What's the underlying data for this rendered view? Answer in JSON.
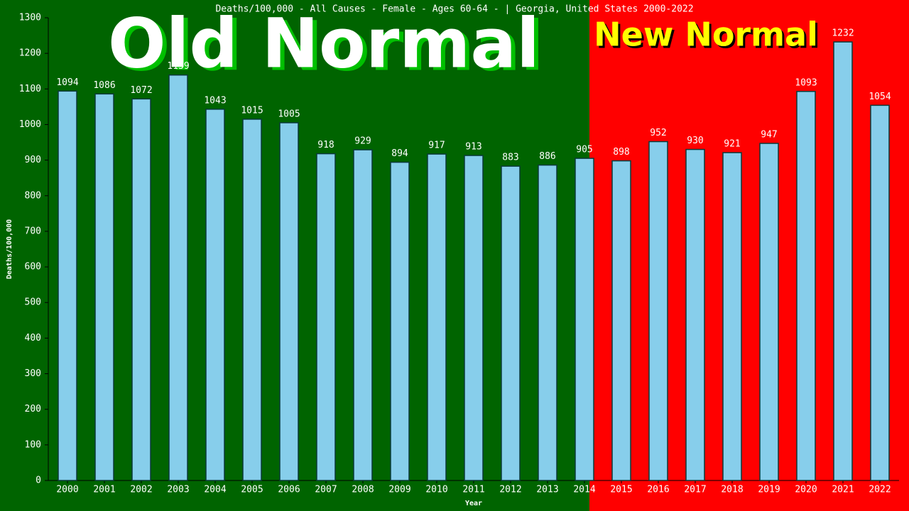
{
  "chart_data": {
    "type": "bar",
    "title": "Deaths/100,000 - All Causes - Female - Ages 60-64 -  | Georgia, United States 2000-2022",
    "x_label": "Year",
    "y_label": "Deaths/100,000",
    "annotations": [
      "Old Normal",
      "New Normal"
    ],
    "categories": [
      "2000",
      "2001",
      "2002",
      "2003",
      "2004",
      "2005",
      "2006",
      "2007",
      "2008",
      "2009",
      "2010",
      "2011",
      "2012",
      "2013",
      "2014",
      "2015",
      "2016",
      "2017",
      "2018",
      "2019",
      "2020",
      "2021",
      "2022"
    ],
    "values": [
      1094,
      1086,
      1072,
      1139,
      1043,
      1015,
      1005,
      918,
      929,
      894,
      917,
      913,
      883,
      886,
      905,
      898,
      952,
      930,
      921,
      947,
      1093,
      1232,
      1054
    ],
    "color": "#87ceeb",
    "ylim": [
      0,
      1300
    ],
    "yticks": [
      0,
      100,
      200,
      300,
      400,
      500,
      600,
      700,
      800,
      900,
      1000,
      1100,
      1200,
      1300
    ]
  }
}
